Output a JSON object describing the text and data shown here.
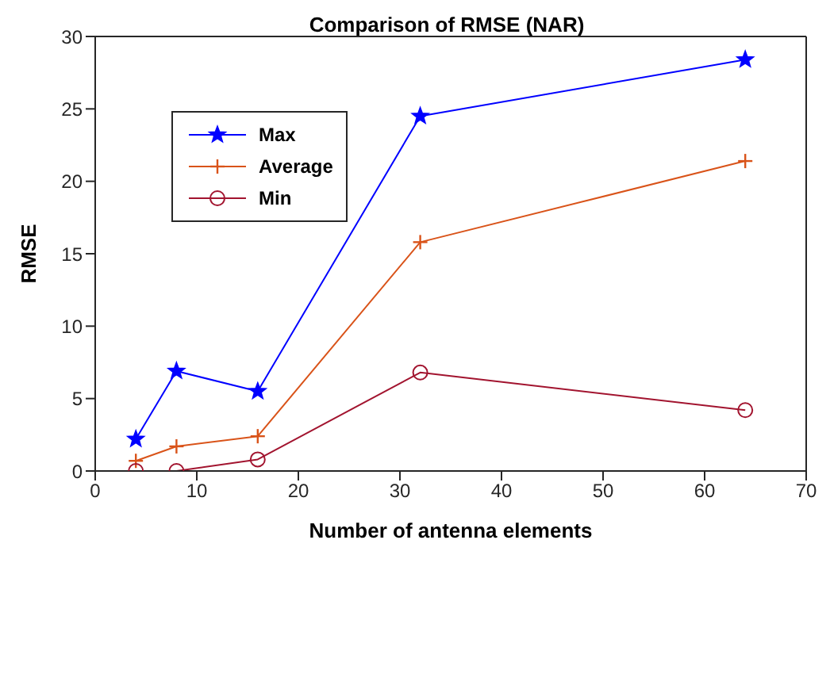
{
  "chart_data": {
    "type": "line",
    "title": "Comparison of RMSE (NAR)",
    "xlabel": "Number of antenna elements",
    "ylabel": "RMSE",
    "x": [
      4,
      8,
      16,
      32,
      64
    ],
    "series": [
      {
        "name": "Max",
        "color": "#0000ff",
        "marker": "star",
        "values": [
          2.2,
          6.9,
          5.5,
          24.5,
          28.4
        ]
      },
      {
        "name": "Average",
        "color": "#d95319",
        "marker": "cross",
        "values": [
          0.7,
          1.7,
          2.4,
          15.8,
          21.4
        ]
      },
      {
        "name": "Min",
        "color": "#a2142f",
        "marker": "circle",
        "values": [
          0,
          0,
          0.8,
          6.8,
          4.2
        ]
      }
    ],
    "xlim": [
      0,
      70
    ],
    "xticks": [
      0,
      10,
      20,
      30,
      40,
      50,
      60,
      70
    ],
    "ylim": [
      0,
      30
    ],
    "yticks": [
      0,
      5,
      10,
      15,
      20,
      25,
      30
    ],
    "grid": false,
    "legend": "top left",
    "line_style": "solid"
  }
}
